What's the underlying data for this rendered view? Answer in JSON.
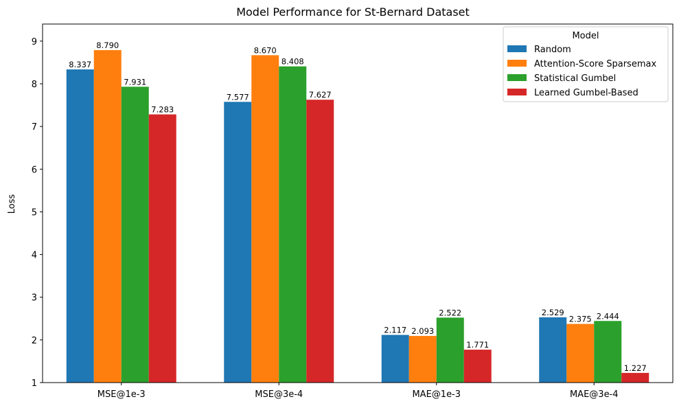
{
  "chart_data": {
    "type": "bar",
    "title": "Model Performance for St-Bernard Dataset",
    "xlabel": "",
    "ylabel": "Loss",
    "ylim": [
      1,
      9.4
    ],
    "yticks": [
      1,
      2,
      3,
      4,
      5,
      6,
      7,
      8,
      9
    ],
    "categories": [
      "MSE@1e-3",
      "MSE@3e-4",
      "MAE@1e-3",
      "MAE@3e-4"
    ],
    "legend": {
      "title": "Model",
      "placement": "top-right"
    },
    "grid": false,
    "series": [
      {
        "name": "Random",
        "color": "#1f77b4",
        "values": [
          8.337,
          7.577,
          2.117,
          2.529
        ],
        "labels": [
          "8.337",
          "7.577",
          "2.117",
          "2.529"
        ]
      },
      {
        "name": "Attention-Score Sparsemax",
        "color": "#ff7f0e",
        "values": [
          8.79,
          8.67,
          2.093,
          2.375
        ],
        "labels": [
          "8.790",
          "8.670",
          "2.093",
          "2.375"
        ]
      },
      {
        "name": "Statistical Gumbel",
        "color": "#2ca02c",
        "values": [
          7.931,
          8.408,
          2.522,
          2.444
        ],
        "labels": [
          "7.931",
          "8.408",
          "2.522",
          "2.444"
        ]
      },
      {
        "name": "Learned Gumbel-Based",
        "color": "#d62728",
        "values": [
          7.283,
          7.627,
          1.771,
          1.227
        ],
        "labels": [
          "7.283",
          "7.627",
          "1.771",
          "1.227"
        ]
      }
    ]
  }
}
